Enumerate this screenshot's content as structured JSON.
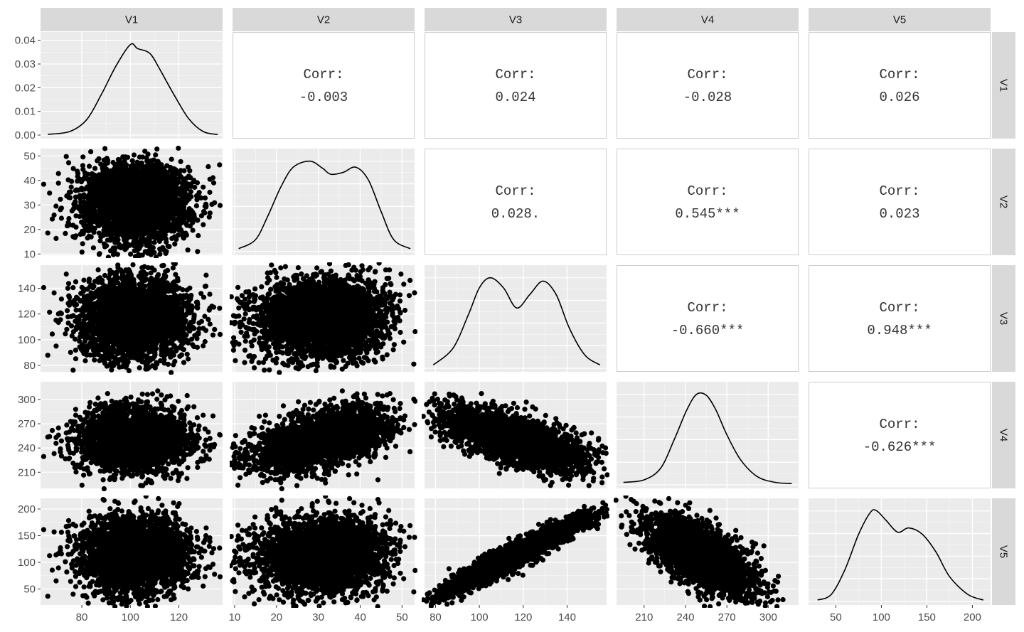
{
  "chart_data": {
    "type": "scatter-matrix",
    "title": "",
    "variables": [
      "V1",
      "V2",
      "V3",
      "V4",
      "V5"
    ],
    "colors": {
      "panel_bg": "#ebebeb",
      "grid_major": "#ffffff",
      "grid_minor": "#f5f5f5",
      "strip_bg": "#d9d9d9",
      "points": "#000000",
      "corr_border": "#cccccc",
      "axis_text": "#4d4d4d"
    },
    "axes": [
      {
        "name": "V1",
        "lim": [
          63,
          138
        ],
        "ticks": [
          80,
          100,
          120
        ],
        "diag_ylim": [
          0,
          0.042
        ],
        "diag_yticks": [
          "0.00",
          "0.01",
          "0.02",
          "0.03",
          "0.04"
        ]
      },
      {
        "name": "V2",
        "lim": [
          9.5,
          53
        ],
        "ticks": [
          10,
          20,
          30,
          40,
          50
        ]
      },
      {
        "name": "V3",
        "lim": [
          75,
          158
        ],
        "ticks": [
          80,
          100,
          120,
          140
        ]
      },
      {
        "name": "V4",
        "lim": [
          190,
          322
        ],
        "ticks": [
          210,
          240,
          270,
          300
        ]
      },
      {
        "name": "V5",
        "lim": [
          20,
          220
        ],
        "ticks": [
          50,
          100,
          150,
          200
        ]
      }
    ],
    "means": [
      102,
      31,
      117,
      250,
      115
    ],
    "sds": [
      11,
      8,
      16,
      19,
      35
    ],
    "correlations": [
      {
        "row": "V1",
        "col": "V2",
        "label": "Corr:",
        "value": "-0.003"
      },
      {
        "row": "V1",
        "col": "V3",
        "label": "Corr:",
        "value": "0.024"
      },
      {
        "row": "V1",
        "col": "V4",
        "label": "Corr:",
        "value": "-0.028"
      },
      {
        "row": "V1",
        "col": "V5",
        "label": "Corr:",
        "value": "0.026"
      },
      {
        "row": "V2",
        "col": "V3",
        "label": "Corr:",
        "value": "0.028."
      },
      {
        "row": "V2",
        "col": "V4",
        "label": "Corr:",
        "value": "0.545***"
      },
      {
        "row": "V2",
        "col": "V5",
        "label": "Corr:",
        "value": "0.023"
      },
      {
        "row": "V3",
        "col": "V4",
        "label": "Corr:",
        "value": "-0.660***"
      },
      {
        "row": "V3",
        "col": "V5",
        "label": "Corr:",
        "value": "0.948***"
      },
      {
        "row": "V4",
        "col": "V5",
        "label": "Corr:",
        "value": "-0.626***"
      }
    ],
    "densities": [
      {
        "var": "V1",
        "x": [
          66,
          75,
          82,
          88,
          94,
          100,
          103,
          108,
          112,
          118,
          124,
          130,
          136
        ],
        "y": [
          0.0003,
          0.0015,
          0.0065,
          0.017,
          0.029,
          0.0382,
          0.0365,
          0.0345,
          0.028,
          0.017,
          0.007,
          0.0015,
          0.0002
        ]
      },
      {
        "var": "V2",
        "x": [
          11,
          15,
          18,
          21,
          24,
          28,
          31,
          33,
          36,
          39,
          42,
          45,
          48,
          52
        ],
        "y": [
          0.003,
          0.012,
          0.036,
          0.064,
          0.084,
          0.09,
          0.083,
          0.077,
          0.079,
          0.084,
          0.071,
          0.04,
          0.012,
          0.003
        ]
      },
      {
        "var": "V3",
        "x": [
          79,
          88,
          95,
          100,
          105,
          111,
          117,
          123,
          129,
          135,
          141,
          148,
          155
        ],
        "y": [
          0.001,
          0.006,
          0.016,
          0.024,
          0.027,
          0.024,
          0.018,
          0.022,
          0.026,
          0.022,
          0.012,
          0.004,
          0.001
        ]
      },
      {
        "var": "V4",
        "x": [
          195,
          210,
          222,
          232,
          241,
          248,
          255,
          262,
          270,
          280,
          292,
          305,
          317
        ],
        "y": [
          0.0006,
          0.0012,
          0.004,
          0.011,
          0.018,
          0.0217,
          0.0215,
          0.018,
          0.012,
          0.006,
          0.002,
          0.0006,
          0.0003
        ]
      },
      {
        "var": "V5",
        "x": [
          30,
          45,
          60,
          75,
          88,
          95,
          105,
          118,
          130,
          145,
          160,
          175,
          195,
          212
        ],
        "y": [
          0.0002,
          0.001,
          0.0045,
          0.0095,
          0.0126,
          0.0128,
          0.0115,
          0.0098,
          0.0104,
          0.0095,
          0.007,
          0.0035,
          0.001,
          0.0002
        ]
      }
    ],
    "n_points": 3000,
    "corr_matrix": [
      [
        1,
        -0.003,
        0.024,
        -0.028,
        0.026
      ],
      [
        -0.003,
        1,
        0.028,
        0.545,
        0.023
      ],
      [
        0.024,
        0.028,
        1,
        -0.66,
        0.948
      ],
      [
        -0.028,
        0.545,
        -0.66,
        1,
        -0.626
      ],
      [
        0.026,
        0.023,
        0.948,
        -0.626,
        1
      ]
    ]
  }
}
